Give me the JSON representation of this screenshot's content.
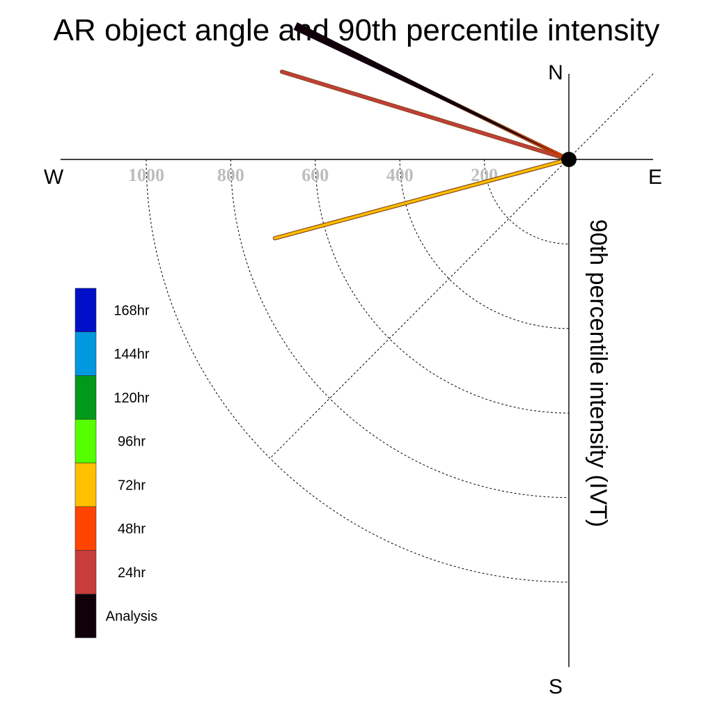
{
  "title": "AR object angle and 90th percentile intensity",
  "compass": {
    "north": "N",
    "south": "S",
    "west": "W",
    "east": "E"
  },
  "chart_data": {
    "type": "polar-vector",
    "title": "AR object angle and 90th percentile intensity",
    "ylabel": "90th percentile intensity (IVT)",
    "radial_ticks": [
      200,
      400,
      600,
      800,
      1000
    ],
    "rlim": [
      0,
      1000
    ],
    "series": [
      {
        "name": "Analysis",
        "color": "#10000a",
        "angle_deg": 154,
        "intensity": 720
      },
      {
        "name": "24hr",
        "color": "#c83c3c",
        "angle_deg": 163,
        "intensity": 710
      },
      {
        "name": "48hr",
        "color": "#ff4400",
        "angle_deg": 154,
        "intensity": 680
      },
      {
        "name": "72hr",
        "color": "#ffc000",
        "angle_deg": 195,
        "intensity": 720
      }
    ],
    "legend": [
      {
        "label": "168hr",
        "color": "#0010c8"
      },
      {
        "label": "144hr",
        "color": "#0099e0"
      },
      {
        "label": "120hr",
        "color": "#00991a"
      },
      {
        "label": "96hr",
        "color": "#55ff00"
      },
      {
        "label": "72hr",
        "color": "#ffc000"
      },
      {
        "label": "48hr",
        "color": "#ff4400"
      },
      {
        "label": "24hr",
        "color": "#c83c3c"
      },
      {
        "label": "Analysis",
        "color": "#10000a"
      }
    ],
    "legend_placement": "left"
  }
}
